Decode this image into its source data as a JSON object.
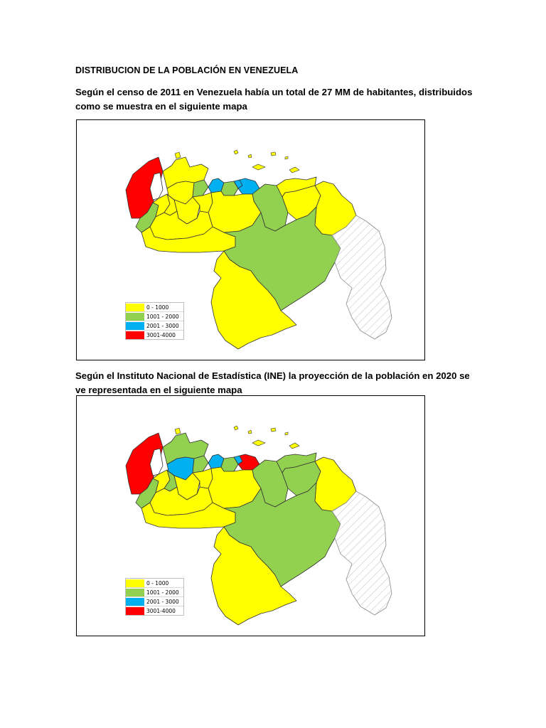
{
  "document": {
    "heading": "DISTRIBUCION DE LA POBLACIÓN EN VENEZUELA",
    "paragraph_1": "Según el censo de 2011 en Venezuela había un total de 27 MM de habitantes, distribuidos como se muestra en el siguiente mapa",
    "paragraph_2": "Según el Instituto Nacional de Estadística (INE) la proyección de la población en 2020 se ve representada en el siguiente mapa"
  },
  "legend": [
    {
      "label": "0 - 1000",
      "color": "#ffff00"
    },
    {
      "label": "1001 - 2000",
      "color": "#92d050"
    },
    {
      "label": "2001 - 3000",
      "color": "#00b0f0"
    },
    {
      "label": "3001-4000",
      "color": "#ff0000"
    }
  ],
  "colors": {
    "yellow": "#ffff00",
    "green": "#92d050",
    "blue": "#00b0f0",
    "red": "#ff0000",
    "hatch": "#bfbfbf"
  },
  "maps": {
    "map_2011": {
      "zulia": "red",
      "falcon": "yellow",
      "lara": "yellow",
      "yaracuy": "green",
      "carabobo": "blue",
      "aragua": "green",
      "caracas": "blue",
      "miranda": "blue",
      "anzoategui": "green",
      "sucre": "yellow",
      "monagas": "yellow",
      "delta": "yellow",
      "tachira": "green",
      "merida": "yellow",
      "trujillo": "yellow",
      "barinas": "yellow",
      "portuguesa": "yellow",
      "cojedes": "yellow",
      "guarico": "yellow",
      "apure": "yellow",
      "bolivar": "green",
      "amazonas": "yellow"
    },
    "map_2020": {
      "zulia": "red",
      "falcon": "green",
      "lara": "blue",
      "yaracuy": "green",
      "carabobo": "blue",
      "aragua": "green",
      "caracas": "blue",
      "miranda": "red",
      "anzoategui": "green",
      "sucre": "green",
      "monagas": "green",
      "delta": "yellow",
      "tachira": "green",
      "merida": "yellow",
      "trujillo": "green",
      "barinas": "yellow",
      "portuguesa": "yellow",
      "cojedes": "yellow",
      "guarico": "yellow",
      "apure": "yellow",
      "bolivar": "green",
      "amazonas": "yellow"
    }
  }
}
